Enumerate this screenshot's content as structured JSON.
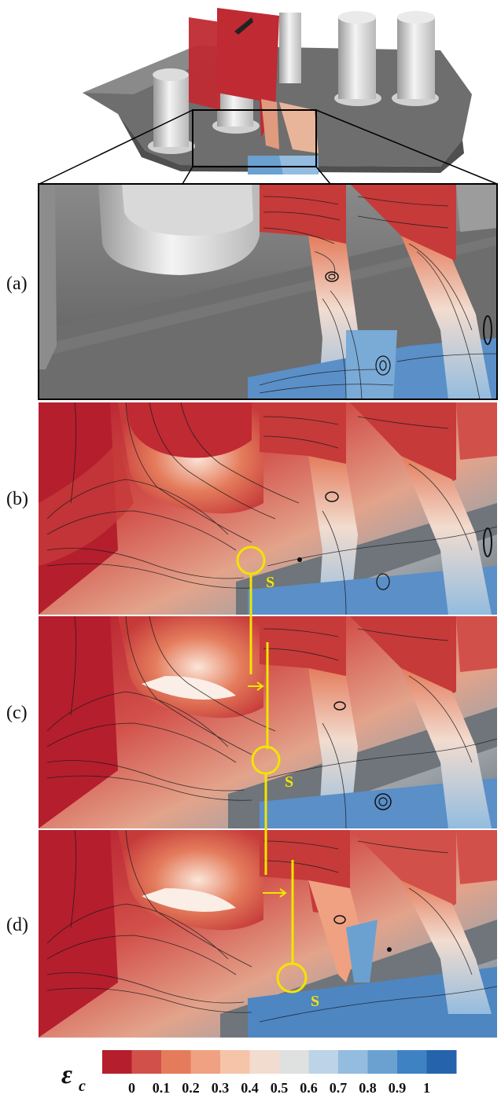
{
  "panels": [
    {
      "label": "(a)"
    },
    {
      "label": "(b)"
    },
    {
      "label": "(c)"
    },
    {
      "label": "(d)"
    }
  ],
  "marker_label": "S",
  "colorbar": {
    "symbol": "ε",
    "subscript": "c",
    "ticks": [
      "0",
      "0.1",
      "0.2",
      "0.3",
      "0.4",
      "0.5",
      "0.6",
      "0.7",
      "0.8",
      "0.9",
      "1"
    ],
    "colors": [
      "#b51e2d",
      "#d2504a",
      "#e47c5c",
      "#efa182",
      "#f6c4a9",
      "#f2dccf",
      "#dfe0e0",
      "#bcd3e8",
      "#93bcdf",
      "#6aa1d1",
      "#3f82c4",
      "#2663ad"
    ]
  }
}
